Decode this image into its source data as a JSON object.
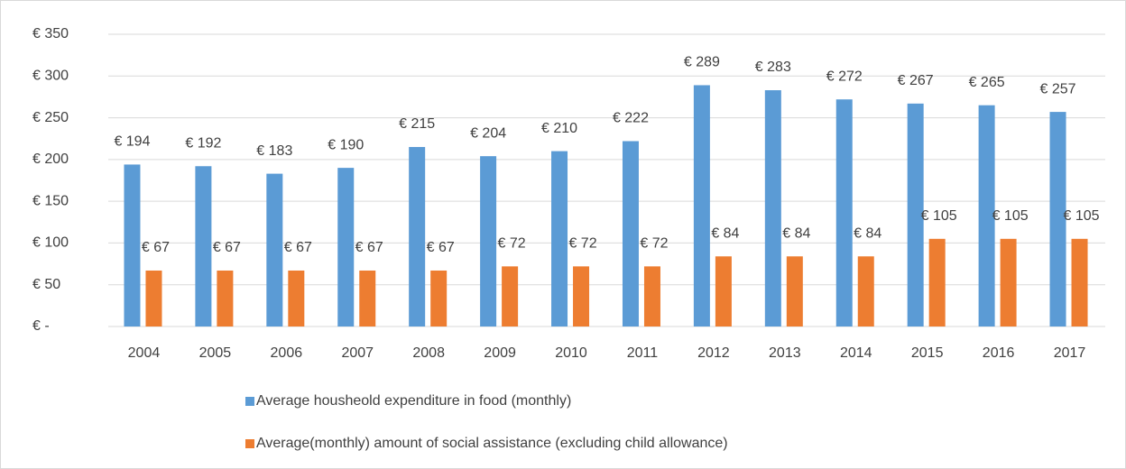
{
  "chart_data": {
    "type": "bar",
    "categories": [
      "2004",
      "2005",
      "2006",
      "2007",
      "2008",
      "2009",
      "2010",
      "2011",
      "2012",
      "2013",
      "2014",
      "2015",
      "2016",
      "2017"
    ],
    "series": [
      {
        "name": "Average housheold expenditure in food (monthly)",
        "color": "#5b9bd5",
        "values": [
          194,
          192,
          183,
          190,
          215,
          204,
          210,
          222,
          289,
          283,
          272,
          267,
          265,
          257
        ],
        "value_labels": [
          "€ 194",
          "€ 192",
          "€ 183",
          "€ 190",
          "€ 215",
          "€ 204",
          "€ 210",
          "€ 222",
          "€ 289",
          "€ 283",
          "€ 272",
          "€ 267",
          "€ 265",
          "€ 257"
        ]
      },
      {
        "name": "Average(monthly) amount of social assistance (excluding child allowance)",
        "color": "#ed7d31",
        "values": [
          67,
          67,
          67,
          67,
          67,
          72,
          72,
          72,
          84,
          84,
          84,
          105,
          105,
          105
        ],
        "value_labels": [
          "€ 67",
          "€ 67",
          "€ 67",
          "€ 67",
          "€ 67",
          "€ 72",
          "€ 72",
          "€ 72",
          "€ 84",
          "€ 84",
          "€ 84",
          "€ 105",
          "€ 105",
          "€ 105"
        ]
      }
    ],
    "ylim": [
      0,
      350
    ],
    "yticks": [
      {
        "value": 0,
        "label": "€ -"
      },
      {
        "value": 50,
        "label": "€ 50"
      },
      {
        "value": 100,
        "label": "€ 100"
      },
      {
        "value": 150,
        "label": "€ 150"
      },
      {
        "value": 200,
        "label": "€ 200"
      },
      {
        "value": 250,
        "label": "€ 250"
      },
      {
        "value": 300,
        "label": "€ 300"
      },
      {
        "value": 350,
        "label": "€ 350"
      }
    ],
    "grid": true,
    "legend": "bottom"
  }
}
